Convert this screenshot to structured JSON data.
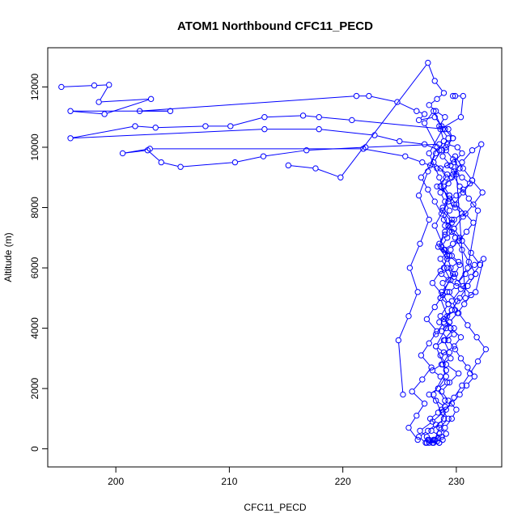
{
  "chart_data": {
    "type": "line",
    "title": "ATOM1 Northbound CFC11_PECD",
    "xlabel": "CFC11_PECD",
    "ylabel": "Altitude (m)",
    "xlim": [
      194,
      234
    ],
    "ylim": [
      -600,
      13300
    ],
    "x_ticks": [
      200,
      210,
      220,
      230
    ],
    "y_ticks": [
      0,
      2000,
      4000,
      6000,
      8000,
      10000,
      12000
    ],
    "x_tick_labels": [
      "200",
      "210",
      "220",
      "230"
    ],
    "y_tick_labels": [
      "0",
      "2000",
      "4000",
      "6000",
      "8000",
      "10000",
      "12000"
    ],
    "series_color": "#0000ff",
    "marker": "open-circle",
    "grid": false,
    "series": [
      {
        "x": [
          195.2,
          198.1,
          199.4,
          198.5,
          203.1,
          199.0,
          196.0,
          204.8,
          202.1,
          221.2,
          222.3,
          224.8,
          226.5,
          227.2,
          226.7,
          228.1,
          228.7,
          229.3,
          229.7,
          229.2,
          230.1,
          230.5,
          229.8,
          228.6,
          229.1,
          228.3,
          229.4,
          228.8,
          229.6,
          229.0,
          228.5,
          229.2,
          228.9,
          229.5,
          228.7,
          229.3,
          228.6,
          229.8,
          228.9,
          229.4,
          228.8,
          229.1,
          228.4,
          229.0,
          228.7,
          229.3,
          228.5,
          229.1,
          228.8,
          228.5,
          227.9
        ],
        "y": [
          12000,
          12050,
          12070,
          11500,
          11600,
          11100,
          11200,
          11200,
          11200,
          11700,
          11700,
          11500,
          11200,
          11100,
          10900,
          11000,
          10700,
          10600,
          10300,
          10100,
          10000,
          9800,
          9500,
          9300,
          9000,
          8700,
          8400,
          8000,
          7600,
          7200,
          6800,
          6400,
          6000,
          5600,
          5200,
          4800,
          4400,
          4000,
          3600,
          3200,
          2800,
          2400,
          2000,
          1600,
          1300,
          1000,
          700,
          500,
          300,
          200,
          200
        ]
      },
      {
        "x": [
          227.6,
          228.0,
          228.5,
          229.0,
          229.6,
          230.0,
          229.3,
          228.7,
          229.4,
          230.2,
          229.1,
          228.6,
          229.8,
          230.4,
          229.5,
          228.9,
          229.6,
          230.1,
          229.2,
          228.8,
          229.9,
          230.3,
          229.4,
          228.7,
          229.2,
          229.8,
          228.9,
          229.4,
          229.0,
          228.6,
          229.3,
          230.0,
          229.5,
          228.8,
          229.1,
          229.7,
          229.0,
          220.8,
          217.9,
          216.5,
          213.1,
          210.1,
          207.9,
          203.5,
          201.7,
          196.0,
          213.1,
          217.9,
          222.8,
          225.0,
          227.2,
          228.5
        ],
        "y": [
          200,
          300,
          500,
          700,
          1000,
          1300,
          1600,
          1900,
          2200,
          2500,
          2800,
          3100,
          3400,
          3700,
          4000,
          4300,
          4600,
          4900,
          5200,
          5500,
          5800,
          6100,
          6400,
          6700,
          7000,
          7300,
          7600,
          7900,
          8200,
          8500,
          8800,
          9100,
          9400,
          9700,
          10000,
          10300,
          10600,
          10900,
          11000,
          11050,
          11000,
          10700,
          10700,
          10650,
          10700,
          10300,
          10600,
          10600,
          10400,
          10200,
          10100,
          9900
        ]
      },
      {
        "x": [
          228.0,
          227.4,
          226.8,
          227.9,
          228.8,
          229.6,
          230.3,
          230.9,
          231.6,
          231.0,
          230.4,
          229.9,
          229.3,
          228.7,
          229.4,
          230.1,
          230.7,
          231.3,
          230.6,
          229.8,
          229.2,
          228.6,
          229.5,
          230.2,
          230.9,
          231.5,
          230.8,
          230.0,
          229.4,
          228.9,
          229.6,
          230.3,
          229.7,
          229.1,
          228.5,
          222.0,
          216.8,
          213.0,
          210.5,
          205.7,
          204.0,
          202.8,
          200.6,
          203.0,
          221.8,
          225.5,
          227.0,
          228.3
        ],
        "y": [
          200,
          400,
          600,
          900,
          1200,
          1500,
          1800,
          2100,
          2400,
          2700,
          3000,
          3300,
          3600,
          3900,
          4200,
          4500,
          4800,
          5100,
          5400,
          5700,
          6000,
          6300,
          6600,
          6900,
          7200,
          7500,
          7800,
          8100,
          8400,
          8700,
          9000,
          9300,
          9600,
          9900,
          10100,
          10000,
          9900,
          9700,
          9500,
          9350,
          9500,
          9900,
          9800,
          9950,
          9950,
          9700,
          9500,
          9300
        ]
      },
      {
        "x": [
          226.6,
          225.8,
          226.5,
          227.2,
          226.1,
          227.0,
          227.8,
          226.9,
          227.6,
          228.3,
          227.4,
          228.1,
          228.8,
          227.9,
          228.6,
          229.2,
          228.4,
          229.0,
          229.6,
          228.8,
          229.4,
          228.6,
          229.2,
          228.0,
          228.7,
          229.3,
          228.5,
          229.0,
          228.2,
          227.6,
          228.3,
          228.9,
          228.1,
          227.5,
          219.8,
          217.6,
          215.2
        ],
        "y": [
          300,
          700,
          1100,
          1500,
          1900,
          2300,
          2700,
          3100,
          3500,
          3900,
          4300,
          4700,
          5100,
          5500,
          5900,
          6300,
          6700,
          7100,
          7500,
          7900,
          8300,
          8700,
          9100,
          9500,
          9900,
          10300,
          10700,
          11000,
          11200,
          11400,
          11600,
          11800,
          12200,
          12800,
          9000,
          9300,
          9400
        ]
      },
      {
        "x": [
          227.3,
          226.7,
          227.5,
          228.2,
          227.7,
          228.4,
          229.0,
          228.2,
          227.6,
          228.4,
          229.2,
          228.6,
          227.9,
          228.7,
          229.5,
          228.9,
          228.2,
          229.0,
          229.8,
          229.1,
          228.5,
          229.2,
          229.9,
          229.3,
          228.6,
          229.4,
          230.0,
          229.3,
          228.7,
          229.5,
          230.2,
          229.6,
          228.9,
          229.7,
          230.3,
          229.6,
          229.0,
          229.8,
          230.5,
          229.9,
          229.3,
          230.0,
          230.6,
          231.2,
          230.5,
          229.8,
          229.2
        ],
        "y": [
          200,
          400,
          600,
          800,
          1000,
          1200,
          1400,
          1600,
          1800,
          2000,
          2200,
          2400,
          2600,
          2800,
          3000,
          3200,
          3400,
          3600,
          3800,
          4000,
          4200,
          4400,
          4600,
          4800,
          5000,
          5200,
          5400,
          5600,
          5800,
          6000,
          6200,
          6400,
          6600,
          6800,
          7000,
          7200,
          7400,
          7600,
          7800,
          8000,
          8200,
          8400,
          8600,
          8800,
          9000,
          9200,
          9400
        ]
      },
      {
        "x": [
          228.1,
          228.6,
          229.1,
          229.8,
          230.5,
          231.2,
          231.9,
          232.6,
          231.8,
          231.0,
          230.2,
          229.6,
          230.4,
          231.3,
          232.1,
          231.3,
          230.5,
          229.8,
          230.6,
          231.5,
          232.3,
          231.4,
          230.6,
          229.9,
          230.8,
          231.7,
          232.4,
          231.6,
          230.8,
          230.1,
          231.0,
          231.9,
          231.1,
          230.3,
          229.7,
          230.5,
          231.4,
          232.2,
          231.4,
          230.6,
          229.8
        ],
        "y": [
          300,
          800,
          1300,
          1700,
          2100,
          2500,
          2900,
          3300,
          3700,
          4100,
          4500,
          4900,
          5300,
          5700,
          6100,
          6500,
          6900,
          7300,
          7700,
          8100,
          8500,
          8900,
          9300,
          9700,
          5000,
          5200,
          6300,
          6100,
          5800,
          5500,
          6000,
          7900,
          8300,
          8700,
          9100,
          9500,
          9900,
          10100,
          8900,
          8500,
          8100
        ]
      },
      {
        "x": [
          225.3,
          224.9,
          225.8,
          226.6,
          225.9,
          226.8,
          227.6,
          226.7,
          227.5,
          228.3,
          227.2,
          228.0,
          228.8,
          227.6,
          228.5,
          229.3,
          228.1,
          229.0,
          229.7,
          228.6,
          229.4,
          228.2,
          229.1,
          228.0,
          228.9,
          227.8,
          228.7,
          227.6,
          228.5,
          227.4,
          228.3,
          227.5,
          228.4
        ],
        "y": [
          1800,
          3600,
          4400,
          5200,
          6000,
          6800,
          7600,
          8400,
          9200,
          10000,
          10800,
          11200,
          10600,
          9800,
          9000,
          8200,
          7400,
          6600,
          5800,
          5000,
          4200,
          3400,
          2600,
          1800,
          1000,
          600,
          400,
          300,
          200,
          200,
          250,
          300,
          350
        ]
      },
      {
        "x": [
          229.7,
          229.9,
          230.6,
          230.4,
          228.6,
          228.9,
          228.2,
          227.7,
          226.9,
          227.5,
          228.1,
          228.7,
          229.3,
          229.9,
          230.5,
          231.1,
          231.7,
          231.0,
          230.3,
          229.6,
          228.9,
          228.2
        ],
        "y": [
          11700,
          11700,
          11700,
          11000,
          10600,
          10200,
          9800,
          9400,
          9000,
          8600,
          8200,
          7800,
          7400,
          7000,
          6600,
          6200,
          5800,
          5400,
          5000,
          4600,
          4200,
          3800
        ]
      }
    ]
  }
}
